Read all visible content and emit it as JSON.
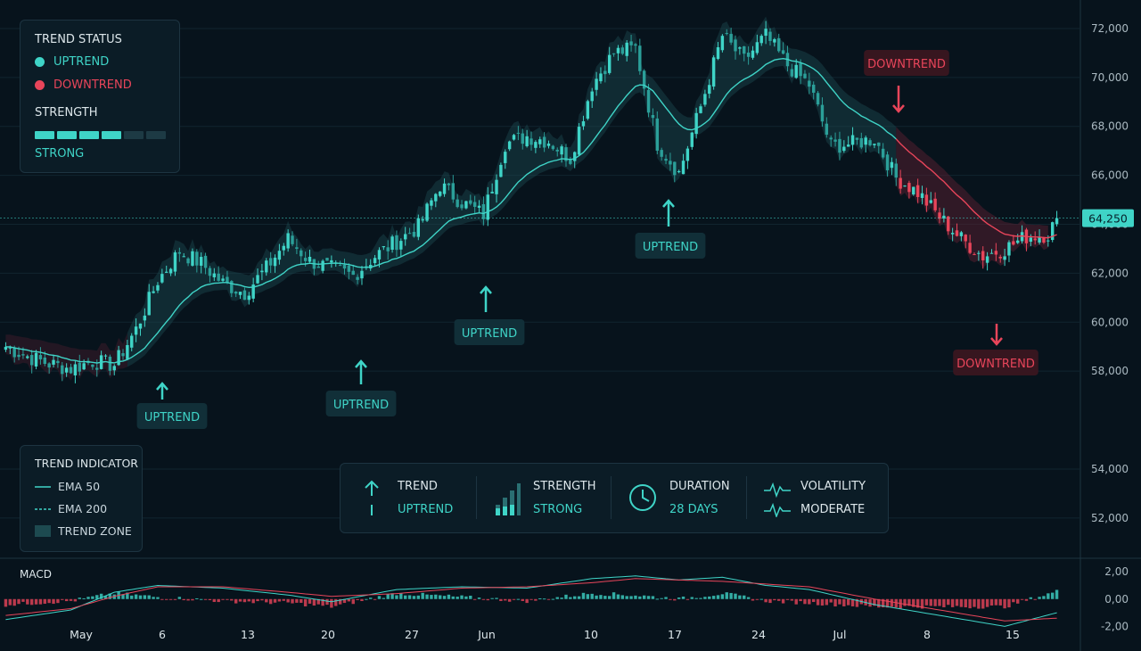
{
  "chart_data": {
    "type": "candlestick",
    "ylim": [
      50500,
      72800
    ],
    "y_ticks": [
      52000,
      54000,
      58000,
      60000,
      62000,
      64000,
      66000,
      68000,
      70000,
      72000
    ],
    "y_tick_labels": [
      "52,000",
      "54,000",
      "58,000",
      "60,000",
      "62,000",
      "64,000",
      "66,000",
      "68,000",
      "70,000",
      "72,000"
    ],
    "x_tick_labels": [
      "May",
      "6",
      "13",
      "20",
      "27",
      "Jun",
      "10",
      "17",
      "24",
      "Jul",
      "8",
      "15"
    ],
    "price_path": [
      [
        0,
        59000
      ],
      [
        5,
        58600
      ],
      [
        10,
        58300
      ],
      [
        15,
        58100
      ],
      [
        20,
        58400
      ],
      [
        25,
        58250
      ],
      [
        30,
        59700
      ],
      [
        35,
        61700
      ],
      [
        40,
        62900
      ],
      [
        45,
        62400
      ],
      [
        50,
        61600
      ],
      [
        55,
        61200
      ],
      [
        60,
        62200
      ],
      [
        65,
        63400
      ],
      [
        70,
        62500
      ],
      [
        75,
        62200
      ],
      [
        80,
        61900
      ],
      [
        85,
        62700
      ],
      [
        90,
        63300
      ],
      [
        95,
        63900
      ],
      [
        100,
        65600
      ],
      [
        105,
        64900
      ],
      [
        110,
        64400
      ],
      [
        115,
        67300
      ],
      [
        120,
        67600
      ],
      [
        125,
        67400
      ],
      [
        130,
        66700
      ],
      [
        135,
        69700
      ],
      [
        140,
        71000
      ],
      [
        145,
        71200
      ],
      [
        150,
        67300
      ],
      [
        155,
        66100
      ],
      [
        160,
        68800
      ],
      [
        165,
        71700
      ],
      [
        170,
        70700
      ],
      [
        175,
        71700
      ],
      [
        180,
        70500
      ],
      [
        185,
        69700
      ],
      [
        190,
        67200
      ],
      [
        195,
        67300
      ],
      [
        200,
        67500
      ],
      [
        205,
        65900
      ],
      [
        210,
        65300
      ],
      [
        215,
        64300
      ],
      [
        220,
        63400
      ],
      [
        225,
        62700
      ],
      [
        230,
        63000
      ],
      [
        235,
        63500
      ],
      [
        240,
        63600
      ],
      [
        242,
        64250
      ]
    ],
    "current_price": "64,250",
    "annotations": [
      {
        "text": "UPTREND",
        "kind": "up"
      },
      {
        "text": "UPTREND",
        "kind": "up"
      },
      {
        "text": "UPTREND",
        "kind": "up"
      },
      {
        "text": "UPTREND",
        "kind": "up"
      },
      {
        "text": "DOWNTREND",
        "kind": "down"
      },
      {
        "text": "DOWNTREND",
        "kind": "down"
      }
    ],
    "macd": {
      "label": "MACD",
      "ylim": [
        -2.5,
        2.6
      ],
      "tick_labels": [
        "2,00",
        "0,00",
        "-2,00"
      ],
      "macd_path": [
        [
          0,
          -1.5
        ],
        [
          15,
          -0.8
        ],
        [
          25,
          0.5
        ],
        [
          35,
          1.0
        ],
        [
          50,
          0.8
        ],
        [
          65,
          0.3
        ],
        [
          75,
          -0.2
        ],
        [
          90,
          0.7
        ],
        [
          105,
          0.9
        ],
        [
          120,
          0.8
        ],
        [
          135,
          1.5
        ],
        [
          145,
          1.7
        ],
        [
          155,
          1.4
        ],
        [
          165,
          1.6
        ],
        [
          175,
          1.0
        ],
        [
          185,
          0.7
        ],
        [
          200,
          -0.4
        ],
        [
          215,
          -1.2
        ],
        [
          230,
          -2.0
        ],
        [
          242,
          -1.0
        ]
      ],
      "signal_path": [
        [
          0,
          -1.2
        ],
        [
          15,
          -0.7
        ],
        [
          25,
          0.2
        ],
        [
          35,
          0.9
        ],
        [
          50,
          0.9
        ],
        [
          65,
          0.5
        ],
        [
          75,
          0.2
        ],
        [
          90,
          0.4
        ],
        [
          105,
          0.8
        ],
        [
          120,
          0.9
        ],
        [
          135,
          1.2
        ],
        [
          145,
          1.5
        ],
        [
          155,
          1.4
        ],
        [
          165,
          1.3
        ],
        [
          175,
          1.1
        ],
        [
          185,
          0.9
        ],
        [
          200,
          0.0
        ],
        [
          215,
          -0.8
        ],
        [
          230,
          -1.6
        ],
        [
          242,
          -1.4
        ]
      ]
    }
  },
  "legend": {
    "title": "TREND STATUS",
    "up_label": "UPTREND",
    "down_label": "DOWNTREND",
    "strength_title": "STRENGTH",
    "strength_level": 4,
    "strength_max": 6,
    "strength_label": "STRONG"
  },
  "indicator": {
    "title": "TREND INDICATOR",
    "ema50": "EMA 50",
    "ema200": "EMA 200",
    "zone": "TREND ZONE"
  },
  "stats": {
    "trend_label": "TREND",
    "trend_value": "UPTREND",
    "strength_label": "STRENGTH",
    "strength_value": "STRONG",
    "duration_label": "DURATION",
    "duration_value": "28 DAYS",
    "volatility_label": "VOLATILITY",
    "volatility_value": "MODERATE"
  },
  "colors": {
    "up": "#3fd4c7",
    "down": "#e8455a",
    "bg": "#07131c",
    "grid": "#11242f",
    "text": "#c9d6dd"
  }
}
